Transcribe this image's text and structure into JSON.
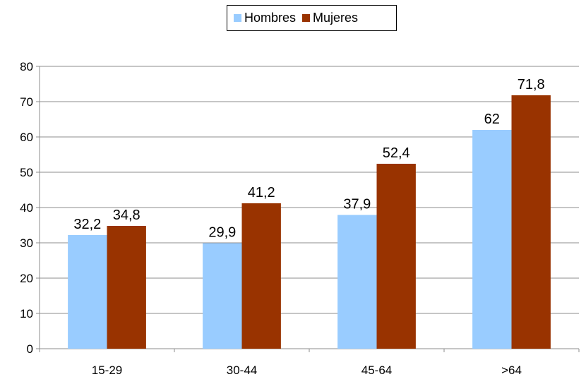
{
  "chart_data": {
    "type": "bar",
    "categories": [
      "15-29",
      "30-44",
      "45-64",
      ">64"
    ],
    "series": [
      {
        "name": "Hombres",
        "color": "#99CCFF",
        "values": [
          32.2,
          29.9,
          37.9,
          62
        ],
        "labels": [
          "32,2",
          "29,9",
          "37,9",
          "62"
        ]
      },
      {
        "name": "Mujeres",
        "color": "#993300",
        "values": [
          34.8,
          41.2,
          52.4,
          71.8
        ],
        "labels": [
          "34,8",
          "41,2",
          "52,4",
          "71,8"
        ]
      }
    ],
    "yticks": [
      "0",
      "10",
      "20",
      "30",
      "40",
      "50",
      "60",
      "70",
      "80"
    ],
    "ylim": [
      0,
      80
    ],
    "title": "",
    "xlabel": "",
    "ylabel": "",
    "grid": true,
    "legend_position": "top-center"
  }
}
